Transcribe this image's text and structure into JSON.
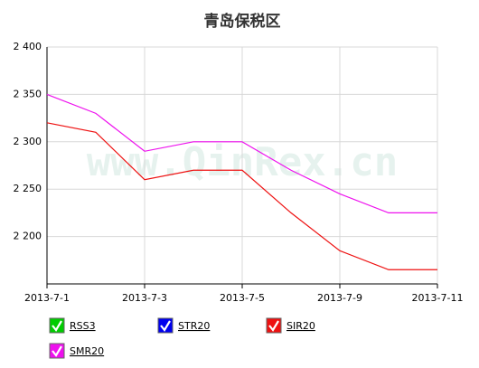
{
  "chart_data": {
    "type": "line",
    "title": "青岛保税区",
    "watermark": "www.QinRex.cn",
    "categories": [
      "2013-7-1",
      null,
      "2013-7-3",
      null,
      "2013-7-5",
      null,
      "2013-7-9",
      null,
      "2013-7-11"
    ],
    "series": [
      {
        "name": "RSS3",
        "color": "#00cc00",
        "values": [
          null,
          null,
          null,
          null,
          null,
          null,
          null,
          null,
          null
        ]
      },
      {
        "name": "STR20",
        "color": "#0000ee",
        "values": [
          null,
          null,
          null,
          null,
          null,
          null,
          null,
          null,
          null
        ]
      },
      {
        "name": "SIR20",
        "color": "#ee1111",
        "values": [
          2320,
          2310,
          2260,
          2270,
          2270,
          2225,
          2185,
          2165,
          2165
        ]
      },
      {
        "name": "SMR20",
        "color": "#ee11ee",
        "values": [
          2350,
          2330,
          2290,
          2300,
          2300,
          2270,
          2245,
          2225,
          2225
        ]
      }
    ],
    "ylim": [
      2150,
      2400
    ],
    "yticks": [
      {
        "value": 2200,
        "label": "2 200"
      },
      {
        "value": 2250,
        "label": "2 250"
      },
      {
        "value": 2300,
        "label": "2 300"
      },
      {
        "value": 2350,
        "label": "2 350"
      },
      {
        "value": 2400,
        "label": "2 400"
      }
    ],
    "grid": true
  }
}
